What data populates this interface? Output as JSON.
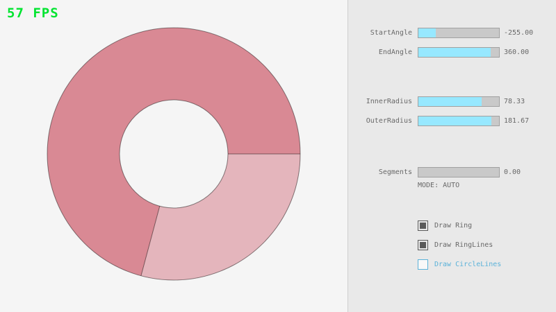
{
  "fps": {
    "label": "57 FPS",
    "color": "#00e430"
  },
  "ring": {
    "color_dark": "#d98994",
    "color_light": "#e4b5bc",
    "outline_color": "rgba(0,0,0,0.45)",
    "background": "#f5f5f5"
  },
  "panel": {
    "background": "#e9e9e9",
    "accent": "#97e8ff",
    "sliders": [
      {
        "label": "StartAngle",
        "value": "-255.00",
        "fill_pct": 21.7
      },
      {
        "label": "EndAngle",
        "value": "360.00",
        "fill_pct": 90.0
      },
      {
        "label": "InnerRadius",
        "value": "78.33",
        "fill_pct": 78.3
      },
      {
        "label": "OuterRadius",
        "value": "181.67",
        "fill_pct": 90.8
      },
      {
        "label": "Segments",
        "value": "0.00",
        "fill_pct": 0
      }
    ],
    "mode_label": "MODE: AUTO",
    "checkboxes": [
      {
        "label": "Draw Ring",
        "checked": true
      },
      {
        "label": "Draw RingLines",
        "checked": true
      },
      {
        "label": "Draw CircleLines",
        "checked": false
      }
    ]
  }
}
